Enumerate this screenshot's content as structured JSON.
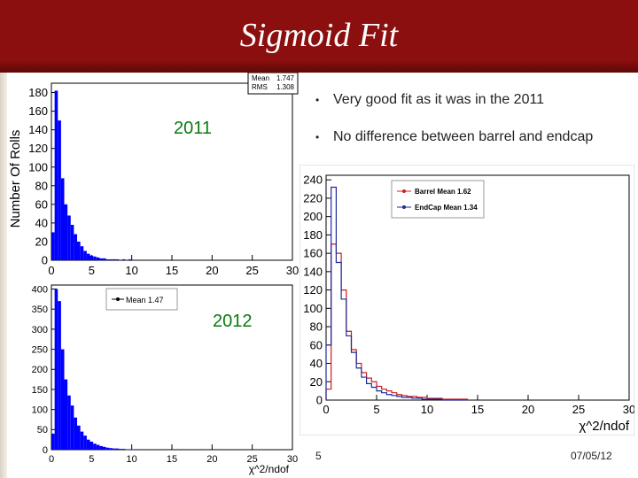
{
  "slide": {
    "title": "Sigmoid Fit",
    "bullets": [
      "Very good fit as it was in the 2011",
      "No difference between barrel and endcap"
    ],
    "label_2011": "2011",
    "label_2012": "2012",
    "page_number": "5",
    "date": "07/05/12",
    "bullet_glyph": "•"
  },
  "chart_data": [
    {
      "type": "bar",
      "ylabel": "Number Of Rolls",
      "xlabel": "",
      "xlim": [
        0,
        30
      ],
      "ylim": [
        0,
        190
      ],
      "xticks": [
        0,
        5,
        10,
        15,
        20,
        25,
        30
      ],
      "yticks": [
        0,
        20,
        40,
        60,
        80,
        100,
        120,
        140,
        160,
        180
      ],
      "bin_width": 0.4,
      "values": [
        30,
        182,
        150,
        88,
        60,
        48,
        38,
        28,
        20,
        15,
        10,
        7,
        5,
        4,
        3,
        2,
        2,
        1,
        1,
        1,
        1,
        0,
        1,
        0,
        1
      ],
      "stats_box": {
        "entries": [
          {
            "label": "Mean",
            "value": "1.747"
          },
          {
            "label": "RMS",
            "value": "1.308"
          }
        ]
      },
      "color": "#0000ff"
    },
    {
      "type": "bar",
      "ylabel": "",
      "xlabel": "χ^2/ndof",
      "xlim": [
        0,
        30
      ],
      "ylim": [
        0,
        410
      ],
      "xticks": [
        0,
        5,
        10,
        15,
        20,
        25,
        30
      ],
      "yticks": [
        0,
        50,
        100,
        150,
        200,
        250,
        300,
        350,
        400
      ],
      "bin_width": 0.4,
      "values": [
        40,
        400,
        370,
        250,
        175,
        135,
        110,
        80,
        60,
        45,
        35,
        25,
        20,
        15,
        12,
        9,
        7,
        5,
        4,
        3,
        3,
        2,
        2,
        1,
        1,
        1
      ],
      "legend": [
        {
          "label": "Mean 1.47"
        }
      ],
      "color": "#0000ff"
    },
    {
      "type": "line",
      "xlabel": "χ^2/ndof",
      "ylabel": "",
      "xlim": [
        0,
        30
      ],
      "ylim": [
        0,
        245
      ],
      "xticks": [
        0,
        5,
        10,
        15,
        20,
        25,
        30
      ],
      "yticks": [
        0,
        20,
        40,
        60,
        80,
        100,
        120,
        140,
        160,
        180,
        200,
        220,
        240
      ],
      "bin_width": 0.5,
      "series": [
        {
          "name": "Barrel Mean 1.62",
          "color": "#cc1f1f",
          "values": [
            12,
            170,
            160,
            120,
            75,
            55,
            40,
            30,
            24,
            20,
            15,
            12,
            10,
            8,
            6,
            5,
            4,
            4,
            3,
            3,
            2,
            2,
            2,
            1,
            1,
            1,
            1,
            1
          ]
        },
        {
          "name": "EndCap Mean 1.34",
          "color": "#1f2b99",
          "values": [
            60,
            232,
            150,
            110,
            70,
            52,
            35,
            25,
            18,
            14,
            10,
            8,
            6,
            5,
            4,
            3,
            3,
            2,
            2,
            1,
            1,
            1,
            1,
            0,
            0,
            0,
            0,
            0
          ]
        }
      ],
      "legend_position": "top-right"
    }
  ]
}
